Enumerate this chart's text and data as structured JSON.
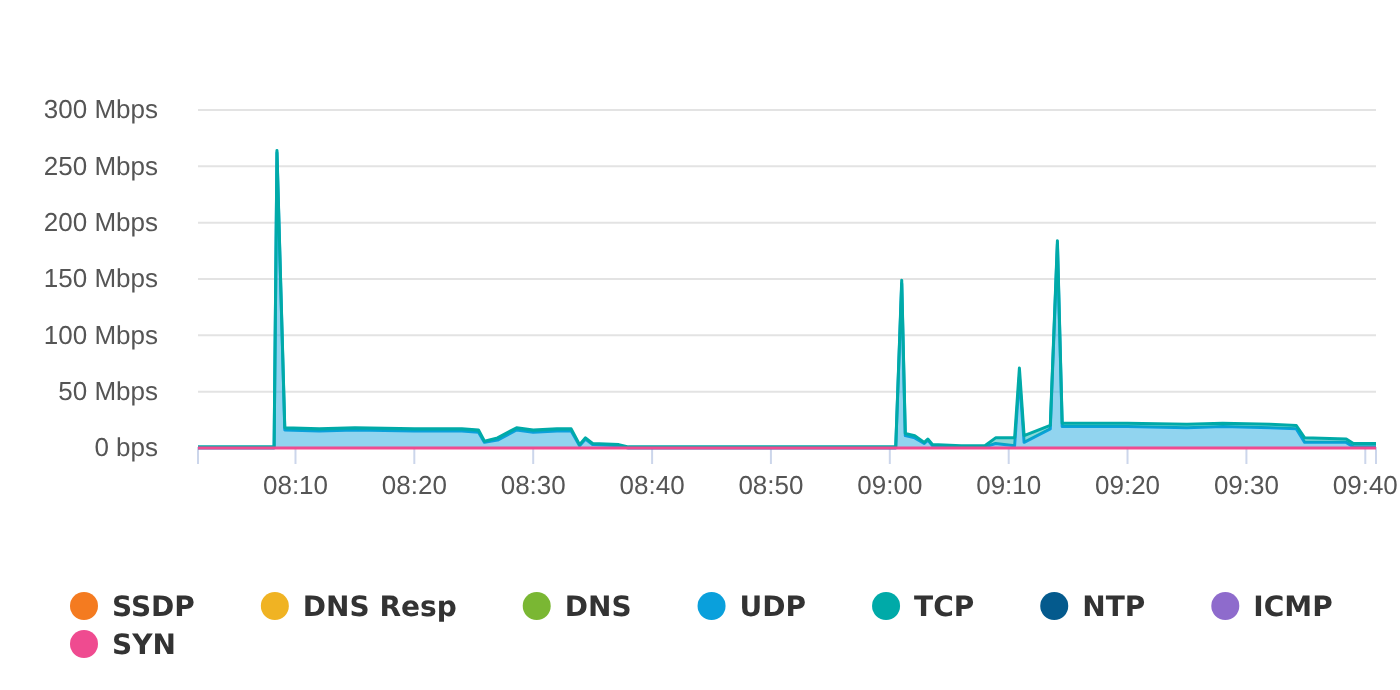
{
  "chart_data": {
    "type": "area",
    "stacked": true,
    "x": [
      8.03,
      8.0833,
      8.1367,
      8.1407,
      8.1517,
      8.2,
      8.25,
      8.3333,
      8.4,
      8.4233,
      8.4317,
      8.45,
      8.4767,
      8.5,
      8.5333,
      8.5533,
      8.565,
      8.5733,
      8.5833,
      8.62,
      8.6333,
      8.75,
      8.9167,
      9.0083,
      9.0167,
      9.0217,
      9.035,
      9.0483,
      9.0533,
      9.06,
      9.1,
      9.1333,
      9.1483,
      9.175,
      9.1817,
      9.1883,
      9.225,
      9.235,
      9.2417,
      9.3333,
      9.4167,
      9.4667,
      9.5333,
      9.57,
      9.5817,
      9.64,
      9.65,
      9.6817
    ],
    "series": [
      {
        "name": "SSDP",
        "color": "#f47b20",
        "values": [
          null,
          null,
          null,
          null,
          null,
          null,
          null,
          null,
          null,
          null,
          null,
          null,
          null,
          null,
          null,
          null,
          null,
          null,
          null,
          null,
          null,
          null,
          null,
          null,
          null,
          null,
          null,
          null,
          null,
          null,
          null,
          null,
          null,
          null,
          null,
          null,
          null,
          null,
          null,
          null,
          null,
          null,
          null,
          null,
          null,
          null,
          null,
          null
        ]
      },
      {
        "name": "DNS Resp",
        "color": "#f0b323",
        "values": [
          null,
          null,
          null,
          null,
          null,
          null,
          null,
          null,
          null,
          null,
          null,
          null,
          null,
          null,
          null,
          null,
          null,
          null,
          null,
          null,
          null,
          null,
          null,
          null,
          null,
          null,
          null,
          null,
          null,
          null,
          null,
          null,
          null,
          null,
          null,
          null,
          null,
          null,
          null,
          null,
          null,
          null,
          null,
          null,
          null,
          null,
          null,
          null
        ]
      },
      {
        "name": "DNS",
        "color": "#7ab733",
        "values": [
          null,
          null,
          null,
          null,
          null,
          null,
          null,
          null,
          null,
          null,
          null,
          null,
          null,
          null,
          null,
          null,
          null,
          null,
          null,
          null,
          null,
          null,
          null,
          null,
          null,
          null,
          null,
          null,
          null,
          null,
          null,
          null,
          null,
          null,
          null,
          null,
          null,
          null,
          null,
          null,
          null,
          null,
          null,
          null,
          null,
          null,
          null,
          null
        ]
      },
      {
        "name": "UDP",
        "color": "#0aa0dc",
        "values": [
          0,
          0,
          0,
          262,
          16,
          15,
          16,
          15,
          15,
          14,
          5,
          7,
          16,
          14,
          15,
          15,
          2,
          8,
          3,
          2,
          0,
          0,
          0,
          0,
          146,
          11,
          9,
          4,
          7,
          2,
          1,
          1,
          4,
          2,
          63,
          5,
          17,
          181,
          19,
          19,
          18,
          19,
          18,
          17,
          5,
          5,
          1,
          1
        ]
      },
      {
        "name": "TCP",
        "color": "#00aaa8",
        "values": [
          1,
          1,
          1,
          2,
          2,
          2,
          2,
          2,
          2,
          2,
          1,
          2,
          2,
          2,
          2,
          2,
          1,
          1,
          1,
          1,
          1,
          1,
          1,
          1,
          3,
          2,
          2,
          1,
          1,
          1,
          1,
          1,
          5,
          7,
          8,
          6,
          3,
          3,
          3,
          3,
          3,
          3,
          3,
          3,
          4,
          3,
          3,
          3
        ]
      },
      {
        "name": "NTP",
        "color": "#045a8d",
        "values": [
          null,
          null,
          null,
          null,
          null,
          null,
          null,
          null,
          null,
          null,
          null,
          null,
          null,
          null,
          null,
          null,
          null,
          null,
          null,
          null,
          null,
          null,
          null,
          null,
          null,
          null,
          null,
          null,
          null,
          null,
          null,
          null,
          null,
          null,
          null,
          null,
          null,
          null,
          null,
          null,
          null,
          null,
          null,
          null,
          null,
          null,
          null,
          null
        ]
      },
      {
        "name": "ICMP",
        "color": "#8e6bcc",
        "values": [
          null,
          null,
          null,
          null,
          null,
          null,
          null,
          null,
          null,
          null,
          null,
          null,
          null,
          null,
          null,
          null,
          null,
          null,
          null,
          null,
          null,
          null,
          null,
          null,
          null,
          null,
          null,
          null,
          null,
          null,
          null,
          null,
          null,
          null,
          null,
          null,
          null,
          null,
          null,
          null,
          null,
          null,
          null,
          null,
          null,
          null,
          null,
          null
        ]
      },
      {
        "name": "SYN",
        "color": "#ef4b90",
        "type": "line",
        "values": [
          0,
          0,
          0,
          0,
          0,
          0,
          0,
          0,
          0,
          0,
          0,
          0,
          0,
          0,
          0,
          0,
          0,
          0,
          0,
          0,
          0,
          0,
          0,
          0,
          0,
          0,
          0,
          0,
          0,
          0,
          0,
          0,
          0,
          0,
          0,
          0,
          0,
          0,
          0,
          0,
          0,
          0,
          0,
          0,
          0,
          0,
          0,
          0
        ]
      }
    ],
    "xlim": [
      8.03,
      9.6817
    ],
    "xticks": [
      {
        "value": 8.1667,
        "label": "08:10"
      },
      {
        "value": 8.3333,
        "label": "08:20"
      },
      {
        "value": 8.5,
        "label": "08:30"
      },
      {
        "value": 8.6667,
        "label": "08:40"
      },
      {
        "value": 8.8333,
        "label": "08:50"
      },
      {
        "value": 9,
        "label": "09:00"
      },
      {
        "value": 9.1667,
        "label": "09:10"
      },
      {
        "value": 9.3333,
        "label": "09:20"
      },
      {
        "value": 9.5,
        "label": "09:30"
      },
      {
        "value": 9.6667,
        "label": "09:40"
      }
    ],
    "ylim": [
      0,
      300
    ],
    "yticks": [
      {
        "value": 0,
        "label": "0 bps"
      },
      {
        "value": 50,
        "label": "50 Mbps"
      },
      {
        "value": 100,
        "label": "100 Mbps"
      },
      {
        "value": 150,
        "label": "150 Mbps"
      },
      {
        "value": 200,
        "label": "200 Mbps"
      },
      {
        "value": 250,
        "label": "250 Mbps"
      },
      {
        "value": 300,
        "label": "300 Mbps"
      }
    ],
    "grid": "y",
    "legend": "bottom"
  }
}
